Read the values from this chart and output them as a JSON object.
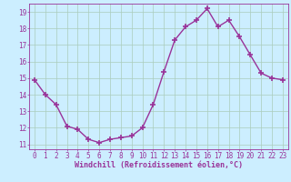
{
  "x": [
    0,
    1,
    2,
    3,
    4,
    5,
    6,
    7,
    8,
    9,
    10,
    11,
    12,
    13,
    14,
    15,
    16,
    17,
    18,
    19,
    20,
    21,
    22,
    23
  ],
  "y": [
    14.9,
    14.0,
    13.4,
    12.1,
    11.9,
    11.3,
    11.1,
    11.3,
    11.4,
    11.5,
    12.0,
    13.4,
    15.4,
    17.3,
    18.1,
    18.5,
    19.2,
    18.1,
    18.5,
    17.5,
    16.4,
    15.3,
    15.0,
    14.9
  ],
  "line_color": "#993399",
  "marker": "+",
  "marker_size": 4,
  "xlabel": "Windchill (Refroidissement éolien,°C)",
  "xlim": [
    -0.5,
    23.5
  ],
  "ylim": [
    10.7,
    19.5
  ],
  "yticks": [
    11,
    12,
    13,
    14,
    15,
    16,
    17,
    18,
    19
  ],
  "xticks": [
    0,
    1,
    2,
    3,
    4,
    5,
    6,
    7,
    8,
    9,
    10,
    11,
    12,
    13,
    14,
    15,
    16,
    17,
    18,
    19,
    20,
    21,
    22,
    23
  ],
  "bg_color": "#cceeff",
  "grid_color": "#aaccbb",
  "font_color": "#993399",
  "font_family": "monospace",
  "tick_fontsize": 5.5,
  "xlabel_fontsize": 6.0,
  "linewidth": 1.0
}
